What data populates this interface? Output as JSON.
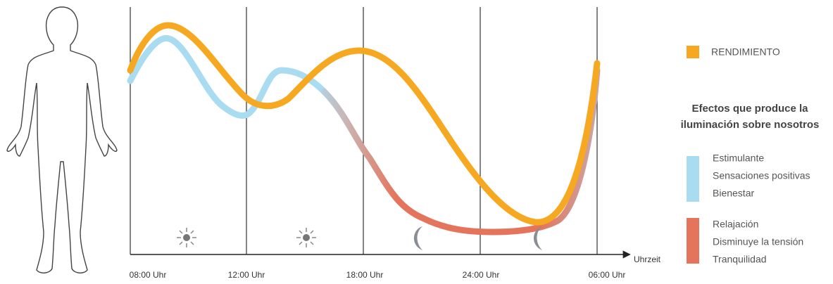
{
  "axis": {
    "label": "Uhrzeit",
    "ticks": [
      "08:00 Uhr",
      "12:00 Uhr",
      "18:00 Uhr",
      "24:00 Uhr",
      "06:00 Uhr"
    ]
  },
  "legend": {
    "performance": "RENDIMIENTO",
    "heading": [
      "Efectos que produce la",
      "iluminación sobre nosotros"
    ],
    "stimulating": [
      "Estimulante",
      "Sensaciones positivas",
      "Bienestar"
    ],
    "relaxing": [
      "Relajación",
      "Disminuye la tensión",
      "Tranquilidad"
    ]
  }
}
